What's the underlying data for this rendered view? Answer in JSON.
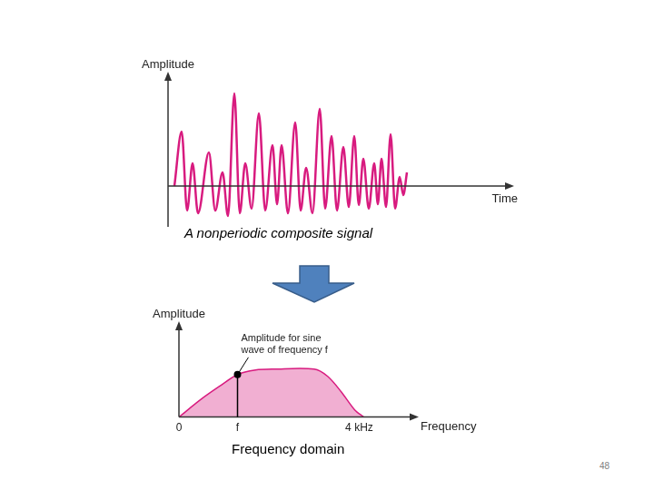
{
  "chart_data": [
    {
      "type": "line",
      "title": "A nonperiodic composite signal",
      "x_label": "Time",
      "y_label": "Amplitude",
      "x": [
        7,
        15,
        21,
        27,
        33,
        45,
        52,
        60,
        66,
        73,
        79,
        85,
        92,
        100,
        107,
        115,
        120,
        125,
        132,
        140,
        146,
        152,
        159,
        167,
        173,
        180,
        186,
        193,
        199,
        205,
        210,
        215,
        221,
        227,
        231,
        235,
        240,
        245,
        250,
        255,
        259,
        263
      ],
      "values": [
        0,
        2.0,
        -0.9,
        0.83,
        -1.0,
        1.23,
        -0.9,
        0.5,
        -1.1,
        3.4,
        -1.0,
        0.83,
        -0.83,
        2.67,
        -0.9,
        1.5,
        -0.67,
        1.5,
        -1.0,
        2.33,
        -0.9,
        0.67,
        -1.0,
        2.83,
        -0.83,
        1.83,
        -0.9,
        1.43,
        -0.77,
        1.83,
        -0.7,
        1.0,
        -0.83,
        0.83,
        -0.67,
        1.0,
        -0.77,
        1.9,
        -0.83,
        0.33,
        -0.33,
        0.5
      ],
      "color": "#d81b7f",
      "xlim": [
        0,
        375
      ],
      "ylim": [
        -1.5,
        4
      ],
      "tick_labels": false,
      "grid": false
    },
    {
      "type": "area",
      "title": "Frequency domain",
      "x_label": "Frequency",
      "y_label": "Amplitude",
      "x": [
        0,
        500,
        900,
        1300,
        1700,
        2100,
        3000,
        3300,
        3600,
        3900,
        4100
      ],
      "values": [
        0,
        2.0,
        3.4,
        4.7,
        5.2,
        5.3,
        5.3,
        4.5,
        2.8,
        0.8,
        0
      ],
      "color": "#d81b7f",
      "xlim": [
        0,
        5200
      ],
      "ylim": [
        0,
        10
      ],
      "xticks": [
        0,
        {
          "value": 1300,
          "label": "f"
        },
        {
          "value": 4000,
          "label": "4 kHz"
        }
      ],
      "tick_labels": "x",
      "grid": false,
      "annotations": [
        {
          "text": [
            "Amplitude for sine",
            "wave of frequency f"
          ],
          "x": 1300,
          "y": 4.7
        }
      ]
    }
  ],
  "page_number": 48
}
